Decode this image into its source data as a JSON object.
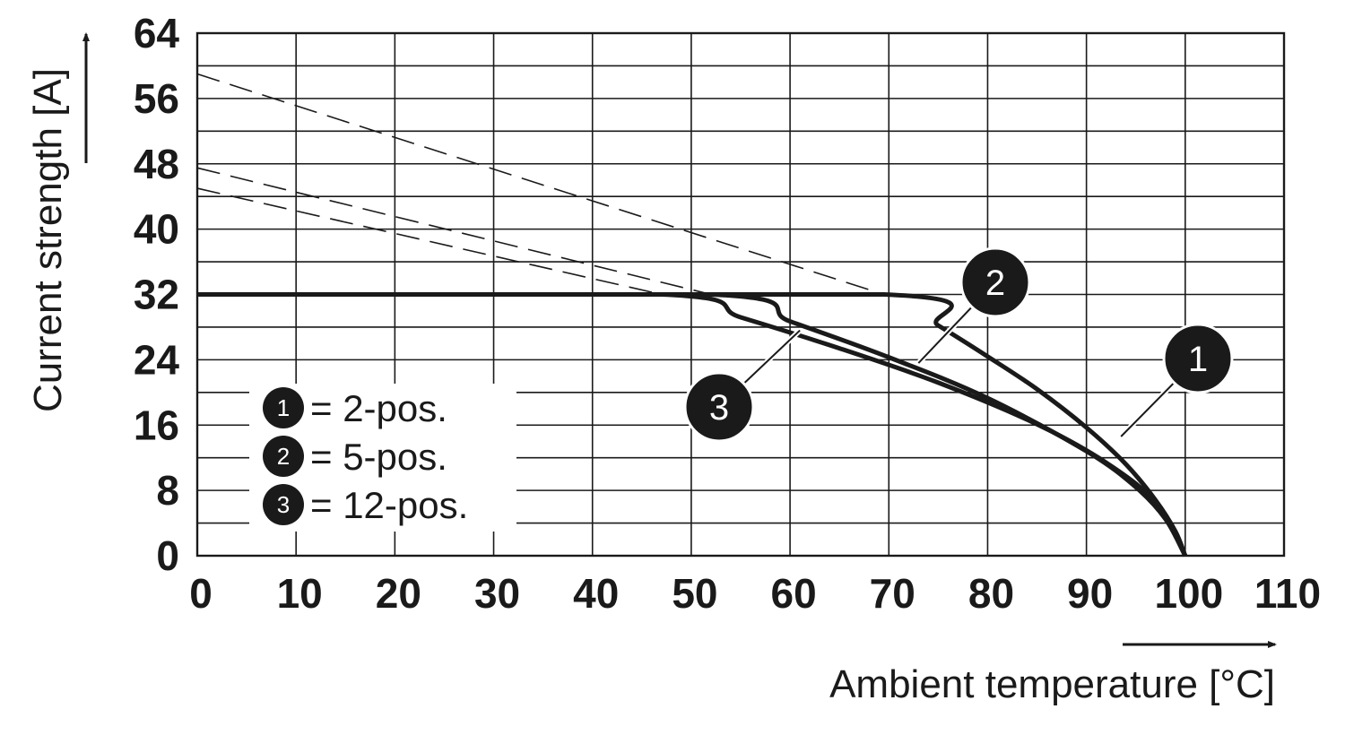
{
  "chart_data": {
    "type": "line",
    "title": "",
    "xlabel": "Ambient temperature [°C]",
    "ylabel": "Current strength [A]",
    "xlim": [
      0,
      110
    ],
    "ylim": [
      0,
      64
    ],
    "x_ticks": [
      "0",
      "10",
      "20",
      "30",
      "40",
      "50",
      "60",
      "70",
      "80",
      "90",
      "100",
      "110"
    ],
    "y_ticks": [
      "0",
      "8",
      "16",
      "24",
      "32",
      "40",
      "48",
      "56",
      "64"
    ],
    "grid": true,
    "legend_position": "bottom-left",
    "legend": [
      {
        "marker": "1",
        "label": "= 2-pos."
      },
      {
        "marker": "2",
        "label": "= 5-pos."
      },
      {
        "marker": "3",
        "label": "= 12-pos."
      }
    ],
    "series": [
      {
        "marker": "1",
        "style": "solid",
        "x": [
          0,
          69.5,
          75,
          80,
          85,
          90,
          94,
          97,
          99,
          100
        ],
        "y": [
          32,
          32,
          28.2,
          24.4,
          20.4,
          15.7,
          11.2,
          6.8,
          3.0,
          0
        ]
      },
      {
        "marker": "2",
        "style": "solid",
        "x": [
          0,
          52,
          60,
          70,
          80,
          90,
          95,
          98,
          100
        ],
        "y": [
          32,
          32,
          28.7,
          24.3,
          19.3,
          12.8,
          8.4,
          4.5,
          0
        ]
      },
      {
        "marker": "3",
        "style": "solid",
        "x": [
          0,
          47,
          55,
          65,
          75,
          85,
          92,
          97,
          100
        ],
        "y": [
          32,
          32,
          29.2,
          25.4,
          21.2,
          16.1,
          11.4,
          6.5,
          0
        ]
      },
      {
        "marker": "1",
        "style": "dashed",
        "x": [
          0,
          69.5
        ],
        "y": [
          59,
          32
        ]
      },
      {
        "marker": "2",
        "style": "dashed",
        "x": [
          0,
          52
        ],
        "y": [
          47.5,
          32
        ]
      },
      {
        "marker": "3",
        "style": "dashed",
        "x": [
          0,
          47
        ],
        "y": [
          45,
          32
        ]
      }
    ],
    "callouts": [
      {
        "marker": "1",
        "at": [
          93.5,
          14.6
        ]
      },
      {
        "marker": "2",
        "at": [
          73,
          23.6
        ]
      },
      {
        "marker": "3",
        "at": [
          61,
          27.6
        ]
      }
    ]
  },
  "colors": {
    "curve": "#1a1a1a",
    "grid": "#1a1a1a",
    "badge_fill": "#1a1a1a"
  }
}
